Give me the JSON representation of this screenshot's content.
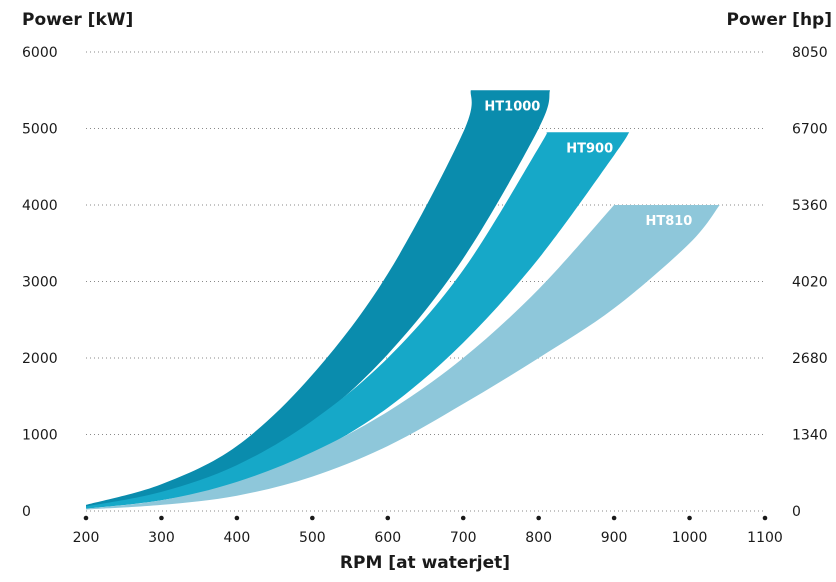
{
  "chart_data": {
    "type": "area",
    "title": "",
    "ylabel_left": "Power [kW]",
    "ylabel_right": "Power [hp]",
    "xlabel": "RPM [at waterjet]",
    "xlim": [
      200,
      1100
    ],
    "ylim": [
      0,
      6000
    ],
    "x_ticks": [
      "200",
      "300",
      "400",
      "500",
      "600",
      "700",
      "800",
      "900",
      "1000",
      "1100"
    ],
    "y_ticks_left": [
      "0",
      "1000",
      "2000",
      "3000",
      "4000",
      "5000",
      "6000"
    ],
    "y_ticks_right": [
      "0",
      "1340",
      "2680",
      "4020",
      "5360",
      "6700",
      "8050"
    ],
    "grid": true,
    "series": [
      {
        "name": "HT1000",
        "color": "#0a8cad",
        "upper": {
          "x": [
            200,
            300,
            400,
            500,
            600,
            700,
            710
          ],
          "y": [
            80,
            350,
            850,
            1780,
            3100,
            4950,
            5500
          ]
        },
        "lower": {
          "x": [
            200,
            300,
            400,
            500,
            600,
            700,
            800,
            815
          ],
          "y": [
            50,
            230,
            560,
            1150,
            2050,
            3300,
            5000,
            5500
          ]
        }
      },
      {
        "name": "HT900",
        "color": "#16a8c8",
        "upper": {
          "x": [
            200,
            300,
            400,
            500,
            600,
            700,
            800,
            810
          ],
          "y": [
            60,
            250,
            600,
            1180,
            2000,
            3150,
            4750,
            4950
          ]
        },
        "lower": {
          "x": [
            200,
            300,
            400,
            500,
            600,
            700,
            800,
            900,
            920
          ],
          "y": [
            30,
            140,
            360,
            750,
            1350,
            2200,
            3300,
            4650,
            4950
          ]
        }
      },
      {
        "name": "HT810",
        "color": "#8ec7da",
        "upper": {
          "x": [
            200,
            300,
            400,
            500,
            600,
            700,
            800,
            900,
            900
          ],
          "y": [
            30,
            140,
            380,
            770,
            1300,
            2000,
            2900,
            4000,
            4000
          ]
        },
        "lower": {
          "x": [
            200,
            300,
            400,
            500,
            600,
            700,
            800,
            900,
            1000,
            1040
          ],
          "y": [
            20,
            80,
            200,
            450,
            850,
            1400,
            2000,
            2650,
            3500,
            4000
          ]
        }
      }
    ]
  }
}
